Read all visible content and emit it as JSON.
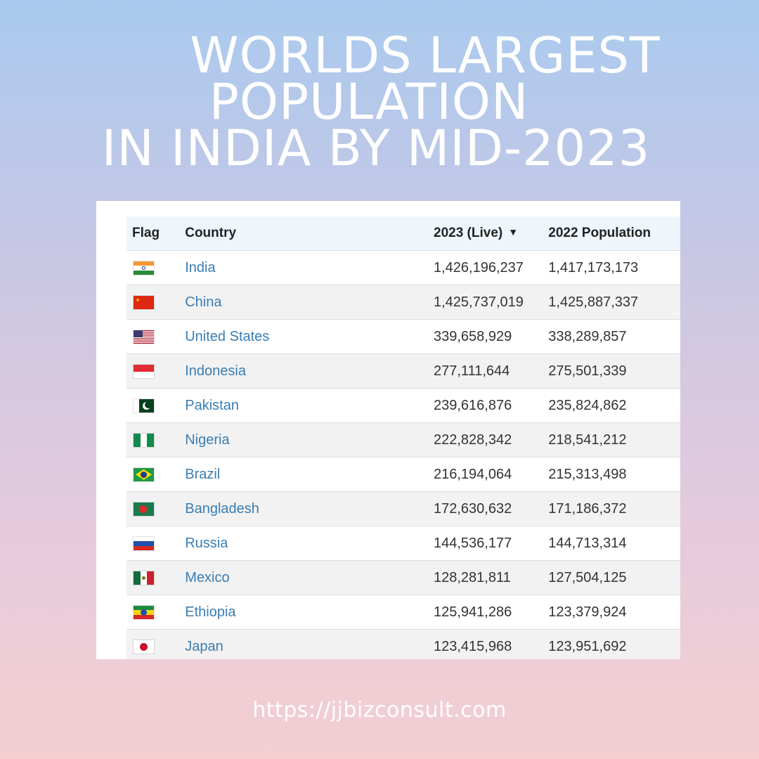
{
  "headline": {
    "line1": "WORLDS LARGEST",
    "line2": "POPULATION",
    "line3": "IN INDIA BY MID-2023"
  },
  "table": {
    "headers": {
      "flag": "Flag",
      "country": "Country",
      "y2023": "2023 (Live)",
      "y2022": "2022 Population"
    },
    "sort_icon": "caret-down-icon",
    "rows": [
      {
        "flag_icon": "india-flag-icon",
        "country": "India",
        "y2023": "1,426,196,237",
        "y2022": "1,417,173,173"
      },
      {
        "flag_icon": "china-flag-icon",
        "country": "China",
        "y2023": "1,425,737,019",
        "y2022": "1,425,887,337"
      },
      {
        "flag_icon": "united-states-flag-icon",
        "country": "United States",
        "y2023": "339,658,929",
        "y2022": "338,289,857"
      },
      {
        "flag_icon": "indonesia-flag-icon",
        "country": "Indonesia",
        "y2023": "277,111,644",
        "y2022": "275,501,339"
      },
      {
        "flag_icon": "pakistan-flag-icon",
        "country": "Pakistan",
        "y2023": "239,616,876",
        "y2022": "235,824,862"
      },
      {
        "flag_icon": "nigeria-flag-icon",
        "country": "Nigeria",
        "y2023": "222,828,342",
        "y2022": "218,541,212"
      },
      {
        "flag_icon": "brazil-flag-icon",
        "country": "Brazil",
        "y2023": "216,194,064",
        "y2022": "215,313,498"
      },
      {
        "flag_icon": "bangladesh-flag-icon",
        "country": "Bangladesh",
        "y2023": "172,630,632",
        "y2022": "171,186,372"
      },
      {
        "flag_icon": "russia-flag-icon",
        "country": "Russia",
        "y2023": "144,536,177",
        "y2022": "144,713,314"
      },
      {
        "flag_icon": "mexico-flag-icon",
        "country": "Mexico",
        "y2023": "128,281,811",
        "y2022": "127,504,125"
      },
      {
        "flag_icon": "ethiopia-flag-icon",
        "country": "Ethiopia",
        "y2023": "125,941,286",
        "y2022": "123,379,924"
      },
      {
        "flag_icon": "japan-flag-icon",
        "country": "Japan",
        "y2023": "123,415,968",
        "y2022": "123,951,692"
      }
    ]
  },
  "colors": {
    "link": "#3a7db3",
    "header_bg": "#eef5fb",
    "stripe": "#f2f2f2"
  },
  "footer": {
    "url": "https://jjbizconsult.com"
  }
}
